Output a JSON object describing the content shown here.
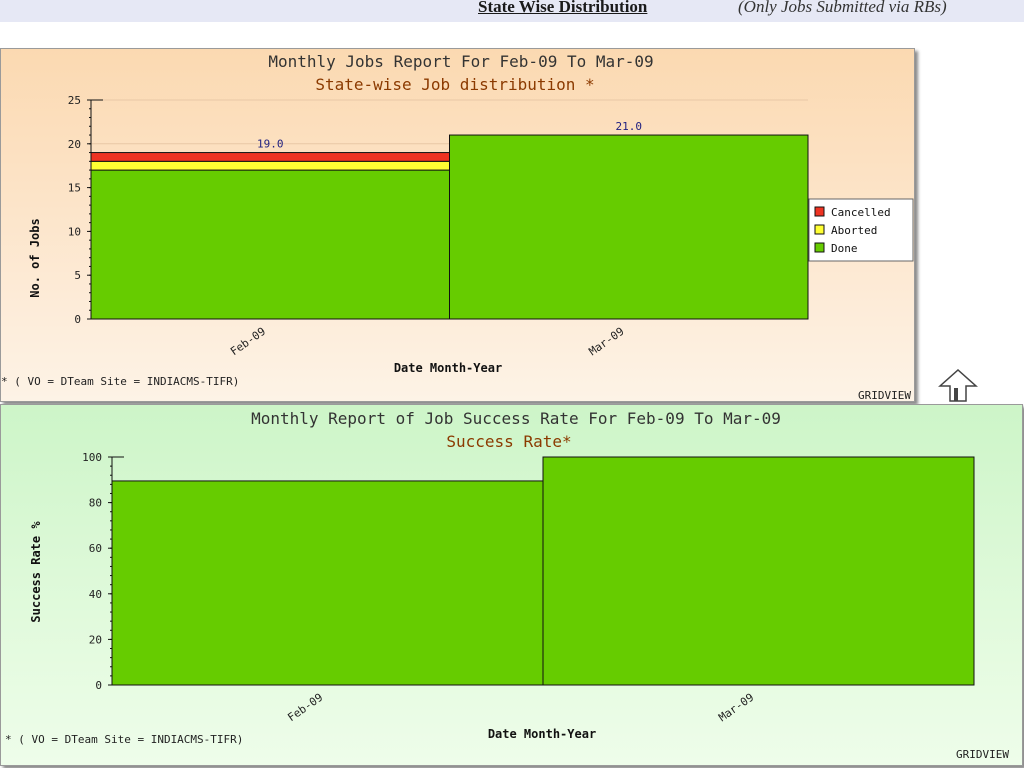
{
  "header": {
    "section_title": "State Wise Distribution",
    "section_note": "(Only Jobs Submitted via RBs)"
  },
  "chart_data": [
    {
      "type": "bar",
      "stacked": true,
      "title": "Monthly Jobs Report For Feb-09 To Mar-09",
      "subtitle": "State-wise Job distribution *",
      "xlabel": "Date Month-Year",
      "ylabel": "No. of Jobs",
      "categories": [
        "Feb-09",
        "Mar-09"
      ],
      "series": [
        {
          "name": "Done",
          "values": [
            17,
            21
          ],
          "color": "#66cc00"
        },
        {
          "name": "Aborted",
          "values": [
            1,
            0
          ],
          "color": "#ffff33"
        },
        {
          "name": "Cancelled",
          "values": [
            1,
            0
          ],
          "color": "#ee3322"
        }
      ],
      "legend_order": [
        "Cancelled",
        "Aborted",
        "Done"
      ],
      "totals": [
        "19.0",
        "21.0"
      ],
      "ylim": [
        0,
        25
      ],
      "yticks": [
        0,
        5,
        10,
        15,
        20,
        25
      ],
      "grid": true,
      "legend": "right",
      "footnote": "* ( VO = DTeam Site = INDIACMS-TIFR)",
      "brand": "GRIDVIEW"
    },
    {
      "type": "bar",
      "title": "Monthly Report of Job Success Rate For Feb-09 To Mar-09",
      "subtitle": "Success Rate*",
      "xlabel": "Date Month-Year",
      "ylabel": "Success Rate %",
      "categories": [
        "Feb-09",
        "Mar-09"
      ],
      "series": [
        {
          "values": [
            89.5,
            100
          ],
          "color": "#66cc00"
        }
      ],
      "ylim": [
        0,
        100
      ],
      "yticks": [
        0,
        20,
        40,
        60,
        80,
        100
      ],
      "grid": false,
      "footnote": "* ( VO = DTeam Site = INDIACMS-TIFR)",
      "brand": "GRIDVIEW"
    }
  ]
}
